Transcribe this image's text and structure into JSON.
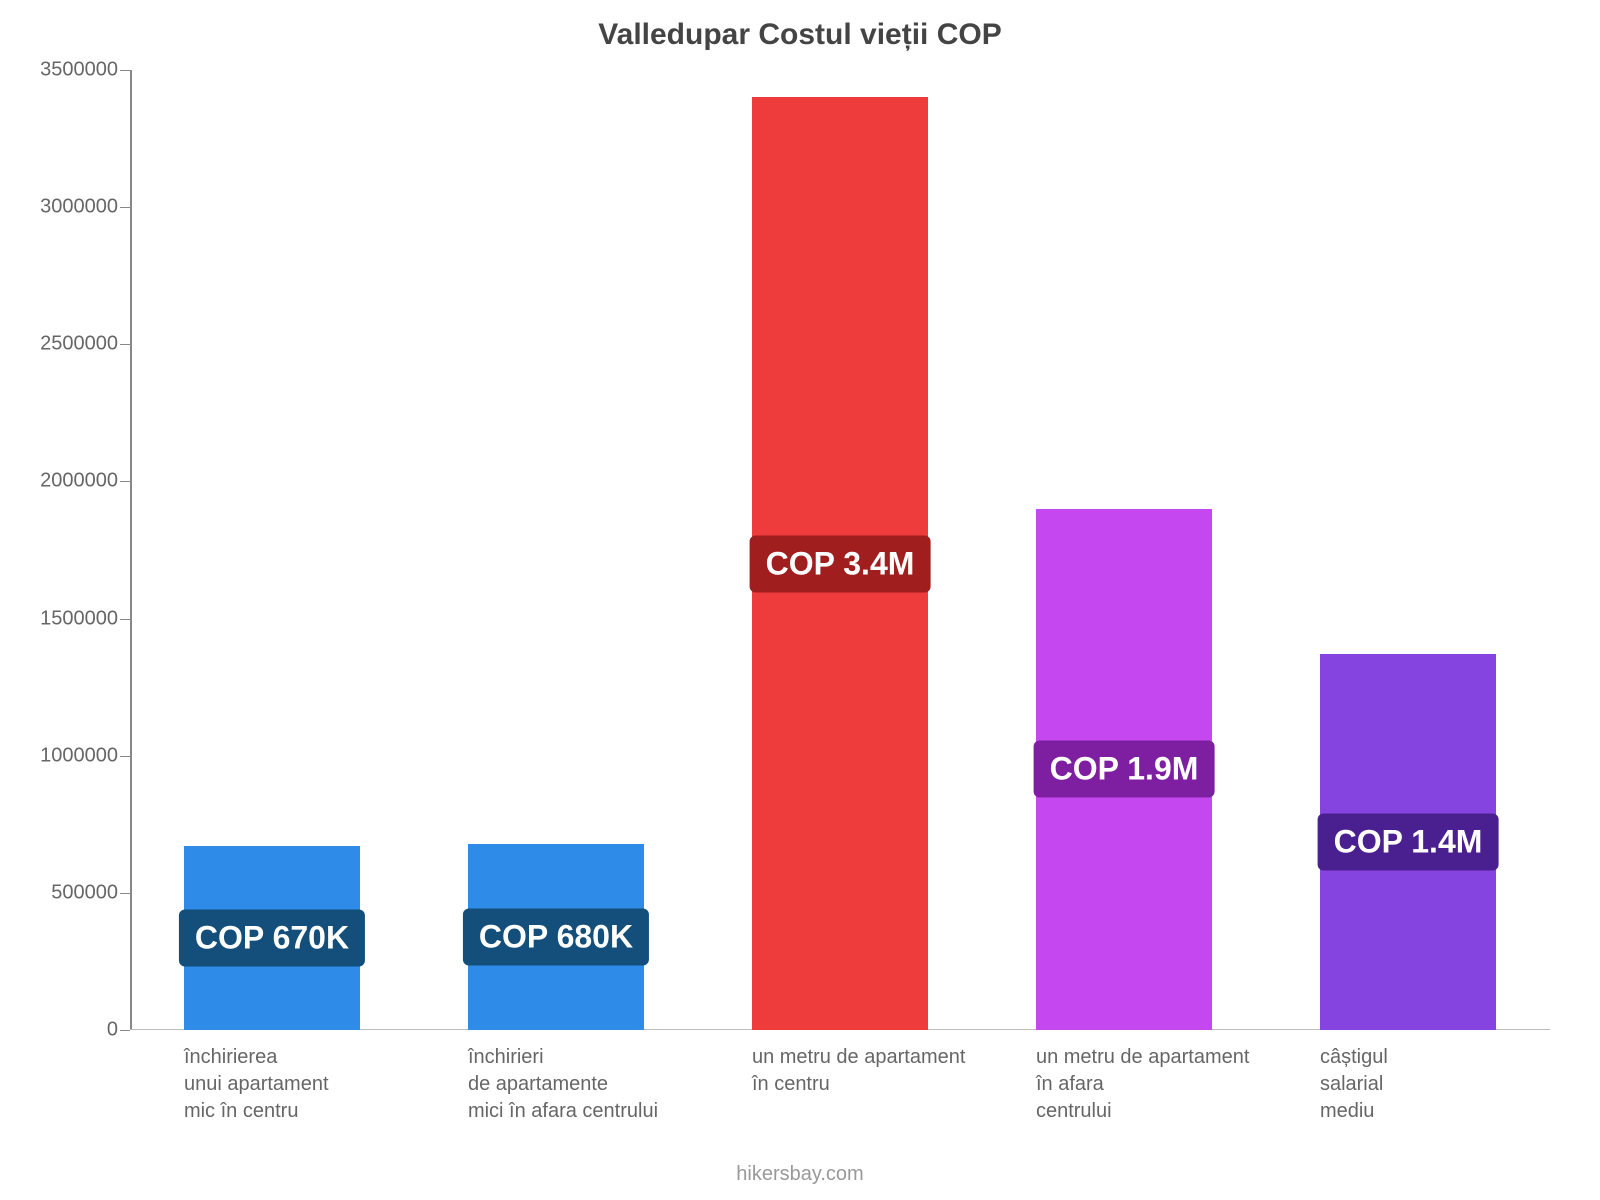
{
  "chart": {
    "type": "bar",
    "title": "Valledupar Costul vieții COP",
    "title_fontsize": 30,
    "title_color": "#444444",
    "background_color": "#ffffff",
    "ylim": [
      0,
      3500000
    ],
    "ytick_step": 500000,
    "yticks": [
      0,
      500000,
      1000000,
      1500000,
      2000000,
      2500000,
      3000000,
      3500000
    ],
    "ytick_labels": [
      "0",
      "500000",
      "1000000",
      "1500000",
      "2000000",
      "2500000",
      "3000000",
      "3500000"
    ],
    "axis_color": "#888888",
    "tick_label_fontsize": 20,
    "tick_label_color": "#666666",
    "bar_width_ratio": 0.62,
    "categories": [
      {
        "lines": [
          "închirierea",
          "unui apartament",
          "mic în centru"
        ]
      },
      {
        "lines": [
          "închirieri",
          "de apartamente",
          "mici în afara centrului"
        ]
      },
      {
        "lines": [
          "un metru de apartament",
          "în centru"
        ]
      },
      {
        "lines": [
          "un metru de apartament",
          "în afara",
          "centrului"
        ]
      },
      {
        "lines": [
          "câștigul",
          "salarial",
          "mediu"
        ]
      }
    ],
    "values": [
      670000,
      680000,
      3400000,
      1900000,
      1370000
    ],
    "value_labels": [
      "COP 670K",
      "COP 680K",
      "COP 3.4M",
      "COP 1.9M",
      "COP 1.4M"
    ],
    "bar_colors": [
      "#2f8be8",
      "#2f8be8",
      "#ee3c3c",
      "#c547ef",
      "#8544e0"
    ],
    "value_badge_colors": [
      "#134f7a",
      "#134f7a",
      "#a01e1e",
      "#7d1fa0",
      "#4a1f90"
    ],
    "value_label_fontsize": 32,
    "value_label_text_color": "#ffffff",
    "xlabel_fontsize": 20,
    "xlabel_color": "#666666",
    "footer": "hikersbay.com",
    "footer_color": "#999999",
    "footer_fontsize": 20
  }
}
